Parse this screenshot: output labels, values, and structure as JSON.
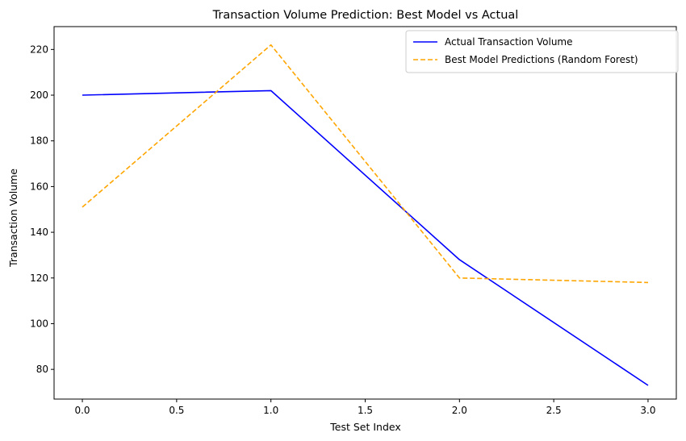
{
  "chart_data": {
    "type": "line",
    "title": "Transaction Volume Prediction: Best Model vs Actual",
    "xlabel": "Test Set Index",
    "ylabel": "Transaction Volume",
    "xlim": [
      -0.15,
      3.15
    ],
    "ylim": [
      67,
      230
    ],
    "xticks": [
      0.0,
      0.5,
      1.0,
      1.5,
      2.0,
      2.5,
      3.0
    ],
    "xtick_labels": [
      "0.0",
      "0.5",
      "1.0",
      "1.5",
      "2.0",
      "2.5",
      "3.0"
    ],
    "yticks": [
      80,
      100,
      120,
      140,
      160,
      180,
      200,
      220
    ],
    "ytick_labels": [
      "80",
      "100",
      "120",
      "140",
      "160",
      "180",
      "200",
      "220"
    ],
    "grid": false,
    "legend_position": "top-right",
    "series": [
      {
        "name": "Actual Transaction Volume",
        "color": "#0000ff",
        "style": "solid",
        "x": [
          0,
          1,
          2,
          3
        ],
        "y": [
          200,
          202,
          128,
          73
        ]
      },
      {
        "name": "Best Model Predictions (Random Forest)",
        "color": "#ffa500",
        "style": "dashed",
        "x": [
          0,
          1,
          2,
          3
        ],
        "y": [
          151,
          222,
          120,
          118
        ]
      }
    ]
  }
}
